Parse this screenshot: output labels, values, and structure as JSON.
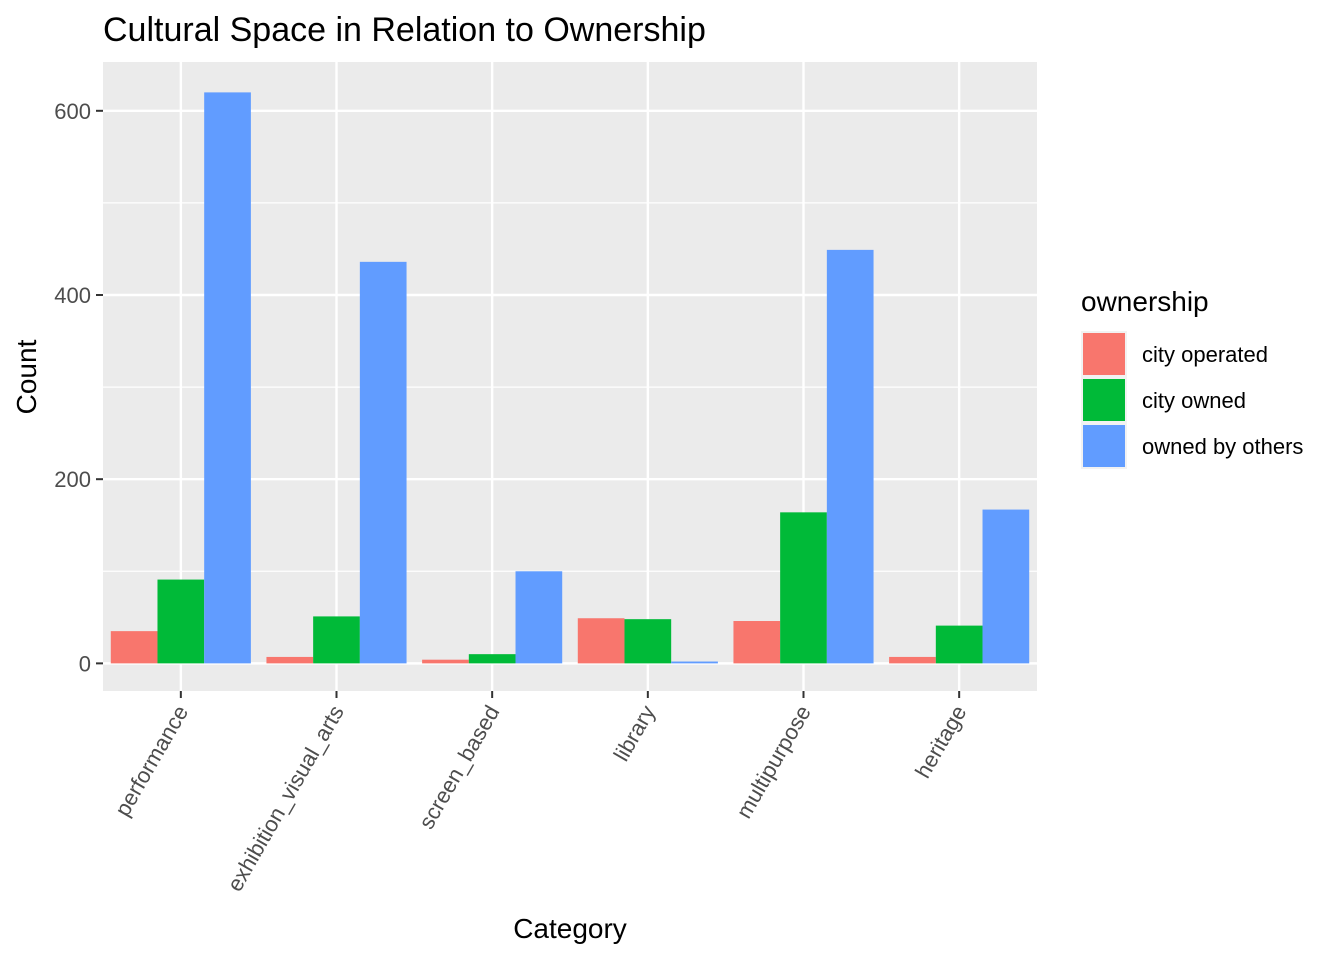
{
  "chart_data": {
    "type": "bar",
    "title": "Cultural Space in Relation to Ownership",
    "xlabel": "Category",
    "ylabel": "Count",
    "categories": [
      "performance",
      "exhibition_visual_arts",
      "screen_based",
      "library",
      "multipurpose",
      "heritage"
    ],
    "series": [
      {
        "name": "city operated",
        "color": "#F8766D",
        "values": [
          35,
          7,
          4,
          49,
          46,
          7
        ]
      },
      {
        "name": "city owned",
        "color": "#00BA38",
        "values": [
          91,
          51,
          10,
          48,
          164,
          41
        ]
      },
      {
        "name": "owned by others",
        "color": "#619CFF",
        "values": [
          620,
          436,
          100,
          2,
          449,
          167
        ]
      }
    ],
    "ylim": [
      -30,
      653
    ],
    "yticks": [
      0,
      200,
      400,
      600
    ],
    "legend_title": "ownership",
    "legend_position": "right",
    "grid": true,
    "panel_background": "#EBEBEB",
    "grid_color": "#FFFFFF"
  }
}
